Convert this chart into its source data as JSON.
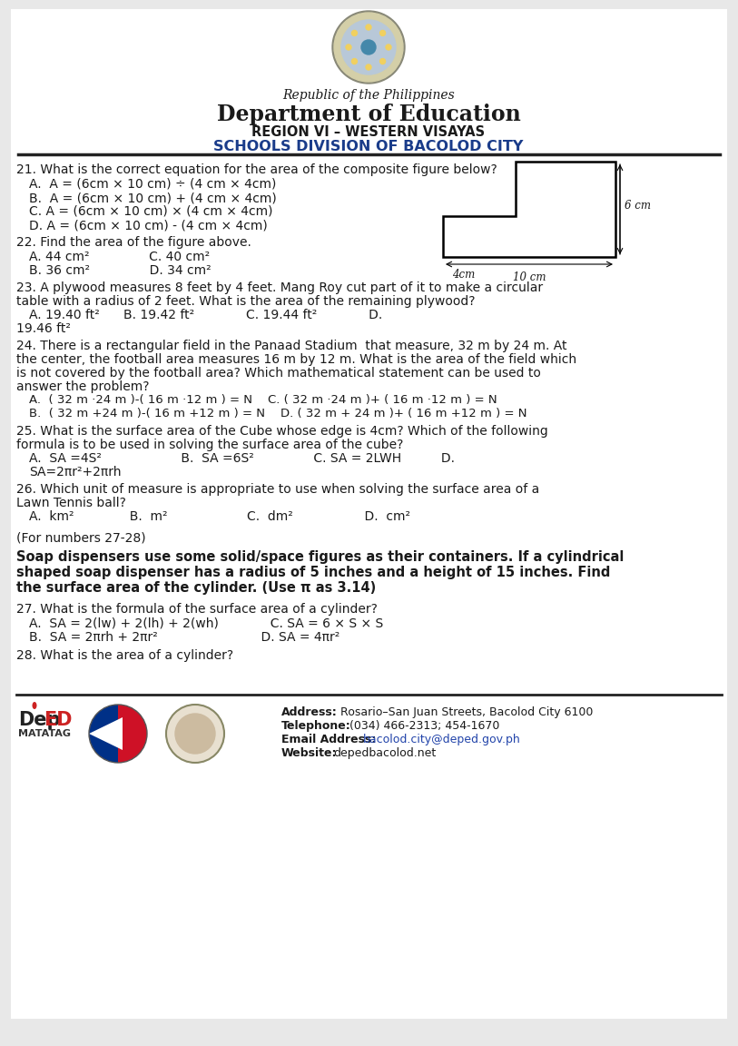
{
  "bg_color": "#ffffff",
  "page_bg": "#e8e8e8",
  "header": {
    "republic": "Republic of the Philippines",
    "dept": "Department of Education",
    "region": "REGION VI – WESTERN VISAYAS",
    "division": "SCHOOLS DIVISION OF BACOLOD CITY"
  },
  "footer": {
    "address_label": "Address:",
    "address_val": "Rosario–San Juan Streets, Bacolod City 6100",
    "tel_label": "Telephone:",
    "tel_val": "(034) 466-2313; 454-1670",
    "email_label": "Email Address:",
    "email_val": "bacolod.city@deped.gov.ph",
    "web_label": "Website:",
    "web_val": "depedbacolod.net"
  },
  "line_color": "#222222",
  "blue_color": "#1a3c8a",
  "text_color": "#1a1a1a",
  "q21_line1": "21. What is the correct equation for the area of the composite figure below?",
  "q21_a": "A.  A = (6cm × 10 cm) ÷ (4 cm × 4cm)",
  "q21_b": "B.  A = (6cm × 10 cm) + (4 cm × 4cm)",
  "q21_c": "C. A = (6cm × 10 cm) × (4 cm × 4cm)",
  "q21_d": "D. A = (6cm × 10 cm) - (4 cm × 4cm)",
  "q22": "22. Find the area of the figure above.",
  "q22_ac": "A. 44 cm²               C. 40 cm²",
  "q22_bd": "B. 36 cm²               D. 34 cm²",
  "q23_l1": "23. A plywood measures 8 feet by 4 feet. Mang Roy cut part of it to make a circular",
  "q23_l2": "table with a radius of 2 feet. What is the area of the remaining plywood?",
  "q23_abc": "A. 19.40 ft²      B. 19.42 ft²             C. 19.44 ft²             D.",
  "q23_d": "19.46 ft²",
  "q24_l1": "24. There is a rectangular field in the Panaad Stadium  that measure, 32 m by 24 m. At",
  "q24_l2": "the center, the football area measures 16 m by 12 m. What is the area of the field which",
  "q24_l3": "is not covered by the football area? Which mathematical statement can be used to",
  "q24_l4": "answer the problem?",
  "q24_ac": "A.  ( 32 m ·24 m )-( 16 m ·12 m ) = N    C. ( 32 m ·24 m )+ ( 16 m ·12 m ) = N",
  "q24_bd": "B.  ( 32 m +24 m )-( 16 m +12 m ) = N    D. ( 32 m + 24 m )+ ( 16 m +12 m ) = N",
  "q25_l1": "25. What is the surface area of the Cube whose edge is 4cm? Which of the following",
  "q25_l2": "formula is to be used in solving the surface area of the cube?",
  "q25_abcd": "A.  SA =4S²                    B.  SA =6S²               C. SA = 2LWH          D.",
  "q25_d": "SA=2πr²+2πrh",
  "q26_l1": "26. Which unit of measure is appropriate to use when solving the surface area of a",
  "q26_l2": "Lawn Tennis ball?",
  "q26_abcd": "A.  km²              B.  m²                    C.  dm²                  D.  cm²",
  "for2728": "(For numbers 27-28)",
  "para_l1": "Soap dispensers use some solid/space figures as their containers. If a cylindrical",
  "para_l2": "shaped soap dispenser has a radius of 5 inches and a height of 15 inches. Find",
  "para_l3": "the surface area of the cylinder. (Use π as 3.14)",
  "q27": "27. What is the formula of the surface area of a cylinder?",
  "q27_ac": "A.  SA = 2(lw) + 2(lh) + 2(wh)             C. SA = 6 × S × S",
  "q27_bd": "B.  SA = 2πrh + 2πr²                          D. SA = 4πr²",
  "q28": "28. What is the area of a cylinder?"
}
